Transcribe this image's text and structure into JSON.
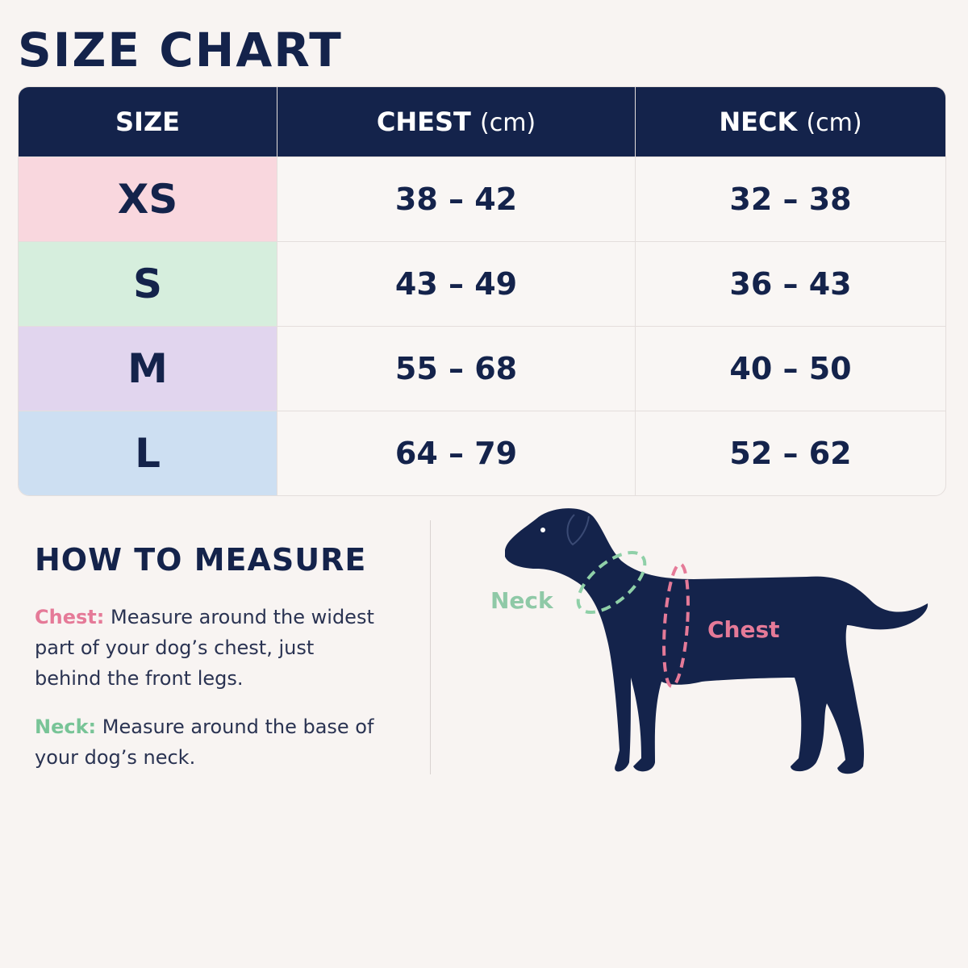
{
  "header": {
    "title": "SIZE CHART"
  },
  "table": {
    "columns": [
      {
        "label": "SIZE"
      },
      {
        "label": "CHEST",
        "unit": "(cm)"
      },
      {
        "label": "NECK",
        "unit": "(cm)"
      }
    ],
    "rows": [
      [
        "XS",
        "38 – 42",
        "32 – 38"
      ],
      [
        "S",
        "43 – 49",
        "36 – 43"
      ],
      [
        "M",
        "55 – 68",
        "40 – 50"
      ],
      [
        "L",
        "64 – 79",
        "52 – 62"
      ]
    ]
  },
  "measure": {
    "title": "HOW TO MEASURE",
    "items": [
      {
        "term": "Chest:",
        "text": "Measure around the widest part of your dog’s chest, just behind the front legs."
      },
      {
        "term": "Neck:",
        "text": "Measure around the base of your dog’s neck."
      }
    ]
  },
  "diagram": {
    "neck_label": "Neck",
    "chest_label": "Chest"
  }
}
